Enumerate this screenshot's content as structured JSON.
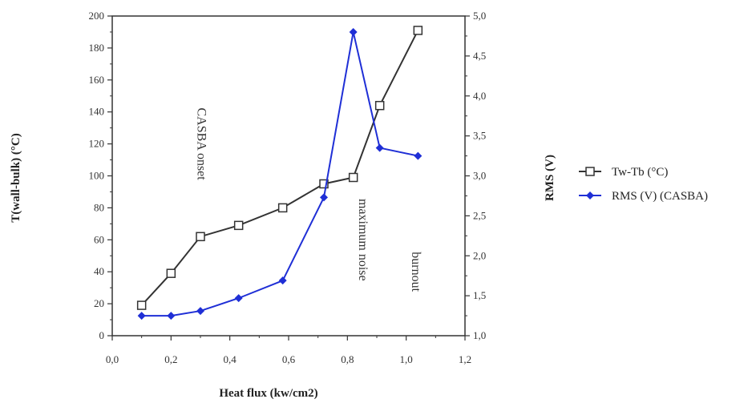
{
  "chart_data": {
    "type": "line",
    "xlabel": "Heat flux (kw/cm2)",
    "ylabel": "T(wall-bulk) (°C)",
    "y2label": "RMS (V)",
    "xlim": [
      0,
      1.2
    ],
    "ylim": [
      0,
      200
    ],
    "y2lim": [
      1.0,
      5.0
    ],
    "xticks": [
      "0,0",
      "0,2",
      "0,4",
      "0,6",
      "0,8",
      "1,0",
      "1,2"
    ],
    "yticks": [
      "0",
      "20",
      "40",
      "60",
      "80",
      "100",
      "120",
      "140",
      "160",
      "180",
      "200"
    ],
    "y2ticks": [
      "1,0",
      "1,5",
      "2,0",
      "2,5",
      "3,0",
      "3,5",
      "4,0",
      "4,5",
      "5,0"
    ],
    "series": [
      {
        "name": "Tw-Tb (°C)",
        "axis": "left",
        "color": "#333333",
        "marker": "open-square",
        "x": [
          0.1,
          0.2,
          0.3,
          0.43,
          0.58,
          0.72,
          0.82,
          0.91,
          1.04
        ],
        "y": [
          19,
          39,
          62,
          69,
          80,
          95,
          99,
          144,
          191
        ]
      },
      {
        "name": "RMS (V) (CASBA)",
        "axis": "right",
        "color": "#1f2fd6",
        "marker": "filled-diamond",
        "x": [
          0.1,
          0.2,
          0.3,
          0.43,
          0.58,
          0.72,
          0.82,
          0.91,
          1.04
        ],
        "y": [
          1.25,
          1.25,
          1.31,
          1.47,
          1.69,
          2.73,
          4.8,
          3.35,
          3.25
        ]
      }
    ],
    "annotations": [
      {
        "text": "CASBA onset",
        "x": 0.29,
        "y": 120
      },
      {
        "text": "maximum noise",
        "x": 0.84,
        "y": 60
      },
      {
        "text": "burnout",
        "x": 1.02,
        "y": 40
      }
    ],
    "legend_position": "right"
  }
}
